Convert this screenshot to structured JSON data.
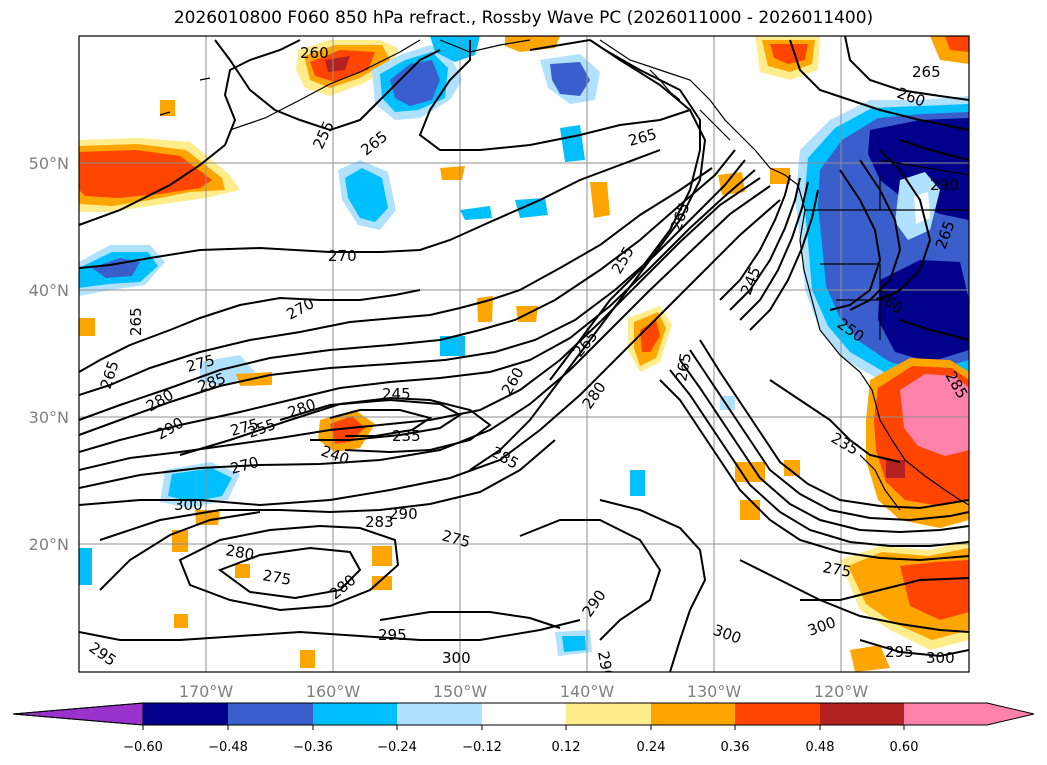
{
  "title": "2026010800 F060 850 hPa refract., Rossby Wave PC (2026011000 - 2026011400)",
  "map": {
    "lat_labels": [
      "50°N",
      "40°N",
      "30°N",
      "20°N"
    ],
    "lon_labels": [
      "170°W",
      "160°W",
      "150°W",
      "140°W",
      "130°W",
      "120°W"
    ],
    "grid": true
  },
  "contour_labels": [
    "270",
    "270",
    "265",
    "265",
    "255",
    "265",
    "265",
    "260",
    "265",
    "260",
    "265",
    "255",
    "260",
    "250",
    "265",
    "245",
    "265",
    "275",
    "285",
    "280",
    "290",
    "280",
    "255",
    "245",
    "235",
    "240",
    "260",
    "270",
    "300",
    "283",
    "290",
    "275",
    "285",
    "280",
    "265",
    "280",
    "275",
    "280",
    "290",
    "295",
    "300",
    "300",
    "295",
    "300",
    "275",
    "235",
    "285",
    "290",
    "295",
    "290",
    "275",
    "300"
  ],
  "colorbar": {
    "tick_labels": [
      "−0.60",
      "−0.48",
      "−0.36",
      "−0.24",
      "−0.12",
      "0.12",
      "0.24",
      "0.36",
      "0.48",
      "0.60"
    ],
    "colors": [
      "#9932cc",
      "#00008b",
      "#3a5fcd",
      "#00bfff",
      "#b0e2ff",
      "#ffffff",
      "#ffec8b",
      "#ffa500",
      "#ff4500",
      "#b22222",
      "#ff82ab"
    ]
  }
}
